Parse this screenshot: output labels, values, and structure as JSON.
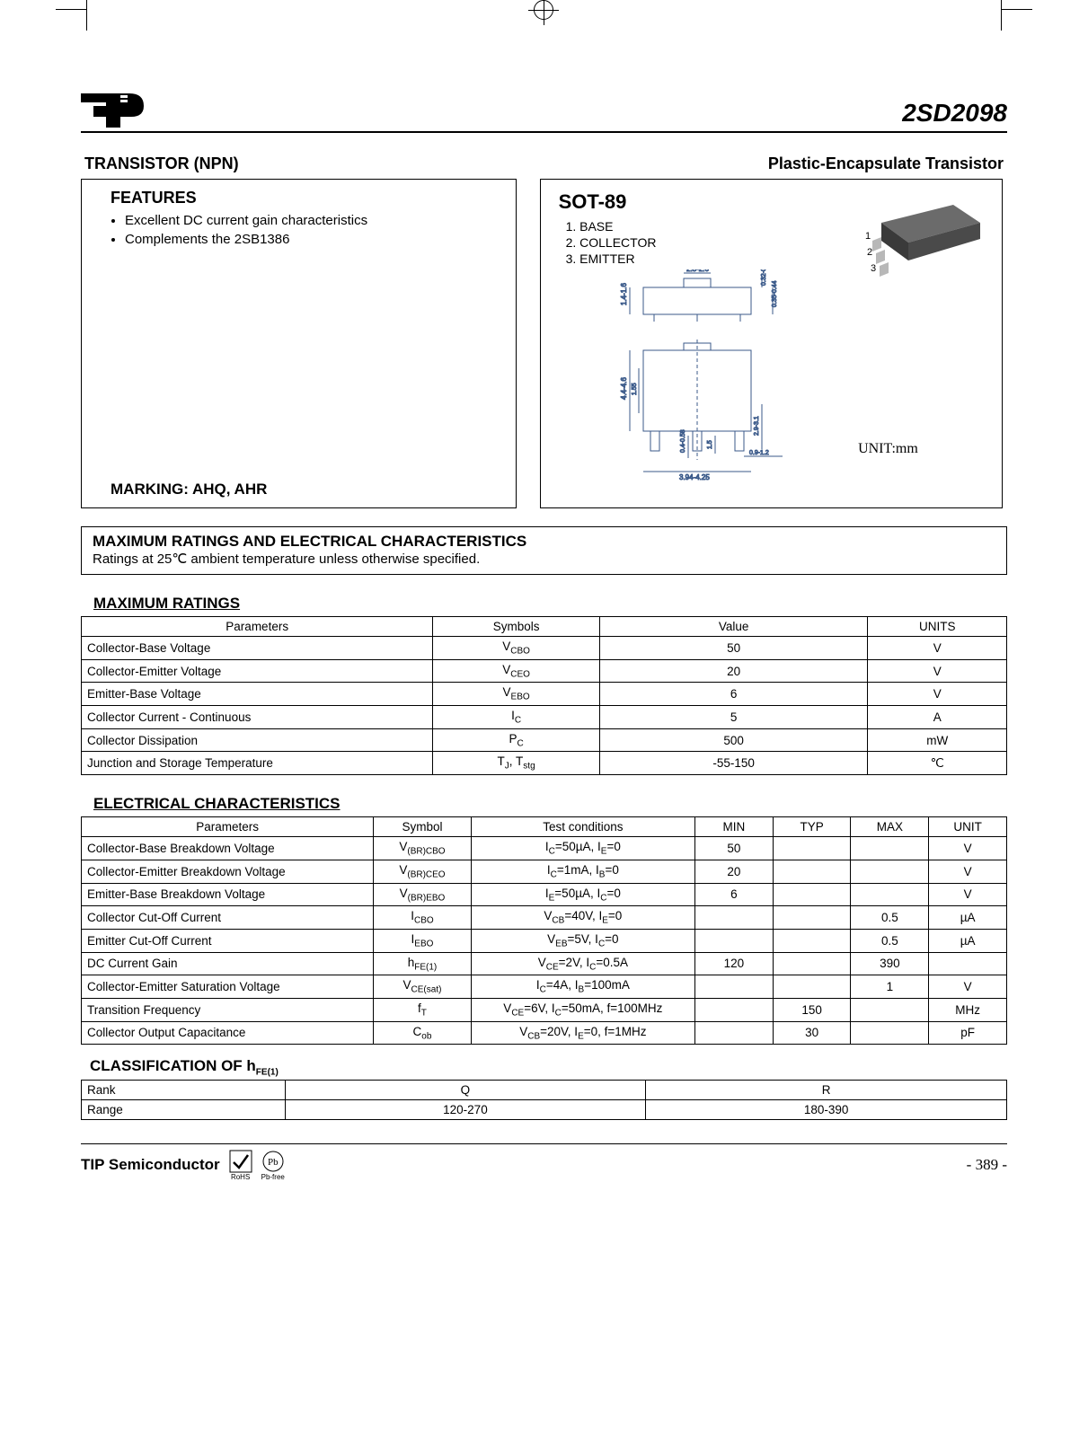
{
  "header": {
    "part_number": "2SD2098"
  },
  "subtitles": {
    "left": "TRANSISTOR (NPN)",
    "right": "Plastic-Encapsulate Transistor"
  },
  "features": {
    "title": "FEATURES",
    "items": [
      "Excellent DC current gain characteristics",
      "Complements the 2SB1386"
    ],
    "marking": "MARKING: AHQ, AHR"
  },
  "package": {
    "title": "SOT-89",
    "pins": [
      "1.  BASE",
      "2.  COLLECTOR",
      "3.  EMITTER"
    ],
    "unit_label": "UNIT:mm",
    "dims": {
      "tab_w": "2.3-2.6",
      "tab_h": "0.32-0.52",
      "body_h": "1.4-1.6",
      "body_thick": "0.35-0.44",
      "body_w": "4.4-4.6",
      "inner": "1.55",
      "lead_w": "0.4-0.58",
      "pitch": "1.5",
      "span": "2.9-3.1",
      "lead_len": "0.9-1.2",
      "overall": "3.94-4.25"
    }
  },
  "ratings_box": {
    "title": "MAXIMUM RATINGS AND ELECTRICAL CHARACTERISTICS",
    "note": "Ratings at 25℃  ambient temperature unless otherwise specified."
  },
  "max_ratings": {
    "title": "MAXIMUM RATINGS",
    "columns": [
      "Parameters",
      "Symbols",
      "Value",
      "UNITS"
    ],
    "col_widths": [
      "38%",
      "18%",
      "29%",
      "15%"
    ],
    "rows": [
      {
        "param": "Collector-Base Voltage",
        "sym": "V<sub>CBO</sub>",
        "val": "50",
        "unit": "V"
      },
      {
        "param": "Collector-Emitter Voltage",
        "sym": "V<sub>CEO</sub>",
        "val": "20",
        "unit": "V"
      },
      {
        "param": "Emitter-Base Voltage",
        "sym": "V<sub>EBO</sub>",
        "val": "6",
        "unit": "V"
      },
      {
        "param": "Collector Current - Continuous",
        "sym": "I<sub>C</sub>",
        "val": "5",
        "unit": "A"
      },
      {
        "param": "Collector Dissipation",
        "sym": "P<sub>C</sub>",
        "val": "500",
        "unit": "mW"
      },
      {
        "param": "Junction and Storage Temperature",
        "sym": "T<sub>J</sub>, T<sub>stg</sub>",
        "val": "-55-150",
        "unit": "℃"
      }
    ]
  },
  "elec_char": {
    "title": "ELECTRICAL CHARACTERISTICS",
    "columns": [
      "Parameters",
      "Symbol",
      "Test conditions",
      "MIN",
      "TYP",
      "MAX",
      "UNIT"
    ],
    "col_widths": [
      "30%",
      "10%",
      "23%",
      "8%",
      "8%",
      "8%",
      "8%"
    ],
    "rows": [
      {
        "param": "Collector-Base Breakdown Voltage",
        "sym": "V<sub>(BR)CBO</sub>",
        "cond": "I<sub>C</sub>=50µA, I<sub>E</sub>=0",
        "min": "50",
        "typ": "",
        "max": "",
        "unit": "V"
      },
      {
        "param": "Collector-Emitter Breakdown Voltage",
        "sym": "V<sub>(BR)CEO</sub>",
        "cond": "I<sub>C</sub>=1mA, I<sub>B</sub>=0",
        "min": "20",
        "typ": "",
        "max": "",
        "unit": "V"
      },
      {
        "param": "Emitter-Base Breakdown Voltage",
        "sym": "V<sub>(BR)EBO</sub>",
        "cond": "I<sub>E</sub>=50µA, I<sub>C</sub>=0",
        "min": "6",
        "typ": "",
        "max": "",
        "unit": "V"
      },
      {
        "param": "Collector Cut-Off Current",
        "sym": "I<sub>CBO</sub>",
        "cond": "V<sub>CB</sub>=40V, I<sub>E</sub>=0",
        "min": "",
        "typ": "",
        "max": "0.5",
        "unit": "µA"
      },
      {
        "param": "Emitter Cut-Off Current",
        "sym": "I<sub>EBO</sub>",
        "cond": "V<sub>EB</sub>=5V, I<sub>C</sub>=0",
        "min": "",
        "typ": "",
        "max": "0.5",
        "unit": "µA"
      },
      {
        "param": "DC Current Gain",
        "sym": "h<sub>FE(1)</sub>",
        "cond": "V<sub>CE</sub>=2V, I<sub>C</sub>=0.5A",
        "min": "120",
        "typ": "",
        "max": "390",
        "unit": ""
      },
      {
        "param": "Collector-Emitter Saturation Voltage",
        "sym": "V<sub>CE(sat)</sub>",
        "cond": "I<sub>C</sub>=4A, I<sub>B</sub>=100mA",
        "min": "",
        "typ": "",
        "max": "1",
        "unit": "V"
      },
      {
        "param": "Transition Frequency",
        "sym": "f<sub>T</sub>",
        "cond": "V<sub>CE</sub>=6V, I<sub>C</sub>=50mA, f=100MHz",
        "min": "",
        "typ": "150",
        "max": "",
        "unit": "MHz"
      },
      {
        "param": "Collector Output Capacitance",
        "sym": "C<sub>ob</sub>",
        "cond": "V<sub>CB</sub>=20V, I<sub>E</sub>=0, f=1MHz",
        "min": "",
        "typ": "30",
        "max": "",
        "unit": "pF"
      }
    ]
  },
  "hfe_class": {
    "title": "CLASSIFICATION OF h<sub>FE(1)</sub>",
    "rows": [
      [
        "Rank",
        "Q",
        "R"
      ],
      [
        "Range",
        "120-270",
        "180-390"
      ]
    ],
    "col_widths": [
      "22%",
      "39%",
      "39%"
    ]
  },
  "footer": {
    "brand": "TIP Semiconductor",
    "page": "- 389 -",
    "rohs": "RoHS",
    "pbfree": "Pb-free"
  },
  "colors": {
    "text": "#000000",
    "bg": "#ffffff",
    "pkg_dark": "#3a3a3a",
    "pkg_mid": "#6b6b6b",
    "pkg_light": "#b8b8b8",
    "diagram_stroke": "#3b5a8a"
  }
}
